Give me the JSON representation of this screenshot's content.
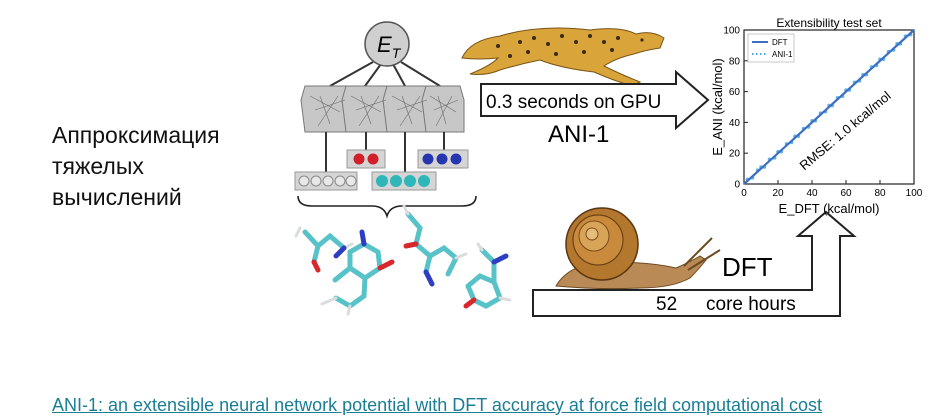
{
  "caption": {
    "lines": [
      "Аппроксимация",
      "тяжелых",
      "вычислений"
    ]
  },
  "network": {
    "energy_label": "E",
    "energy_subscript": "T"
  },
  "fast_arrow": {
    "label": "0.3 seconds on GPU",
    "method": "ANI-1"
  },
  "slow_arrow": {
    "method": "DFT",
    "cost_number": "52",
    "cost_unit": "core hours"
  },
  "link": {
    "text": "ANI-1: an extensible neural network potential with DFT accuracy at force field computational cost"
  },
  "colors": {
    "accent": "#1a7f95",
    "fit_line": "#3a6fc4",
    "points": "#4aa6e0"
  },
  "chart_data": {
    "type": "scatter",
    "title": "Extensibility test set",
    "xlabel": "E_DFT (kcal/mol)",
    "ylabel": "E_ANI (kcal/mol)",
    "xlim": [
      0,
      100
    ],
    "ylim": [
      0,
      100
    ],
    "xticks": [
      "0",
      "20",
      "40",
      "60",
      "80",
      "100"
    ],
    "yticks": [
      "0",
      "20",
      "40",
      "60",
      "80",
      "100"
    ],
    "legend": {
      "placement": "top-left",
      "entries": [
        "DFT",
        "ANI-1"
      ]
    },
    "annotation": "RMSE: 1.0 kcal/mol",
    "series": [
      {
        "name": "DFT",
        "style": "line",
        "x": [
          0,
          100
        ],
        "y": [
          0,
          100
        ]
      },
      {
        "name": "ANI-1",
        "style": "points",
        "x": [
          2,
          5,
          8,
          10,
          12,
          15,
          18,
          20,
          22,
          25,
          28,
          30,
          32,
          35,
          38,
          40,
          42,
          45,
          48,
          50,
          52,
          55,
          58,
          60,
          62,
          65,
          68,
          70,
          72,
          75,
          78,
          80,
          82,
          85,
          88,
          90,
          92,
          95,
          98
        ],
        "y": [
          3,
          4,
          9,
          11,
          11,
          16,
          17,
          21,
          21,
          26,
          27,
          31,
          31,
          36,
          37,
          41,
          41,
          46,
          47,
          51,
          51,
          56,
          57,
          61,
          61,
          66,
          67,
          71,
          71,
          76,
          77,
          81,
          81,
          86,
          87,
          91,
          91,
          96,
          97
        ]
      }
    ]
  }
}
